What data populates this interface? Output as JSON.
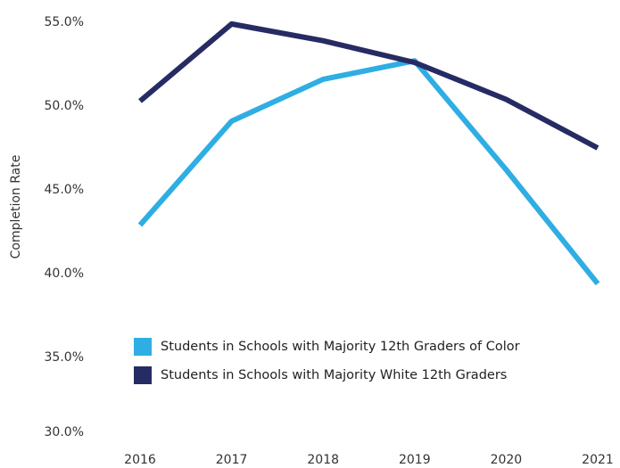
{
  "chart_data": {
    "type": "line",
    "ylabel": "Completion Rate",
    "categories": [
      "2016",
      "2017",
      "2018",
      "2019",
      "2020",
      "2021"
    ],
    "series": [
      {
        "name": "Students in Schools with Majority 12th Graders of Color",
        "color": "#2eaee3",
        "values": [
          42.9,
          49.1,
          51.6,
          52.7,
          46.2,
          39.4
        ]
      },
      {
        "name": "Students in Schools with Majority White 12th Graders",
        "color": "#262b63",
        "values": [
          50.3,
          54.9,
          53.9,
          52.6,
          50.4,
          47.5
        ]
      }
    ],
    "ylim": [
      30,
      55
    ],
    "yticks": [
      {
        "value": 30,
        "label": "30.0%"
      },
      {
        "value": 35,
        "label": "35.0%"
      },
      {
        "value": 40,
        "label": "40.0%"
      },
      {
        "value": 45,
        "label": "45.0%"
      },
      {
        "value": 50,
        "label": "50.0%"
      },
      {
        "value": 55,
        "label": "55.0%"
      }
    ]
  }
}
